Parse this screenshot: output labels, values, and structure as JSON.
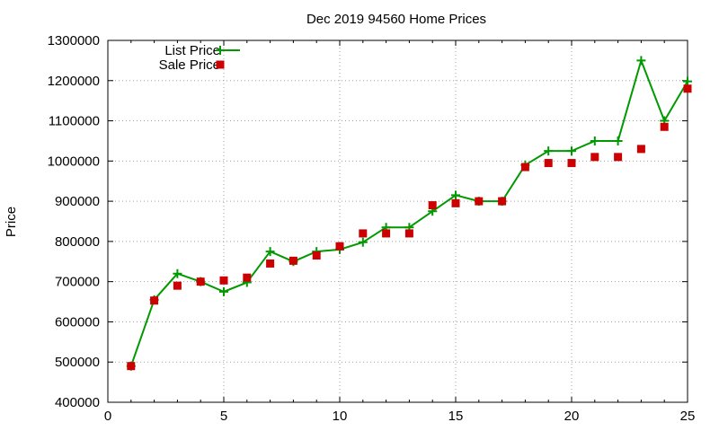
{
  "chart_data": {
    "type": "line",
    "title": "Dec 2019 94560 Home Prices",
    "xlabel": "",
    "ylabel": "Price",
    "xlim": [
      0,
      25
    ],
    "ylim": [
      400000,
      1300000
    ],
    "xticks": [
      0,
      5,
      10,
      15,
      20,
      25
    ],
    "yticks": [
      400000,
      500000,
      600000,
      700000,
      800000,
      900000,
      1000000,
      1100000,
      1200000,
      1300000
    ],
    "grid": true,
    "legend_position": "top-left",
    "series": [
      {
        "name": "List Price",
        "style": "line-with-plus-markers",
        "color": "#009900",
        "x": [
          1,
          2,
          3,
          4,
          5,
          6,
          7,
          8,
          9,
          10,
          11,
          12,
          13,
          14,
          15,
          16,
          17,
          18,
          19,
          20,
          21,
          22,
          23,
          24,
          25
        ],
        "values": [
          490000,
          655000,
          720000,
          700000,
          675000,
          698000,
          775000,
          750000,
          775000,
          780000,
          798000,
          835000,
          835000,
          875000,
          915000,
          900000,
          900000,
          990000,
          1025000,
          1025000,
          1050000,
          1050000,
          1250000,
          1100000,
          1198000
        ]
      },
      {
        "name": "Sale Price",
        "style": "square-markers",
        "color": "#cc0000",
        "x": [
          1,
          2,
          3,
          4,
          5,
          6,
          7,
          8,
          9,
          10,
          11,
          12,
          13,
          14,
          15,
          16,
          17,
          18,
          19,
          20,
          21,
          22,
          23,
          24,
          25
        ],
        "values": [
          490000,
          653000,
          690000,
          700000,
          703000,
          710000,
          745000,
          752000,
          765000,
          788000,
          820000,
          820000,
          820000,
          890000,
          895000,
          900000,
          900000,
          985000,
          995000,
          995000,
          1010000,
          1010000,
          1030000,
          1085000,
          1180000
        ]
      }
    ]
  }
}
